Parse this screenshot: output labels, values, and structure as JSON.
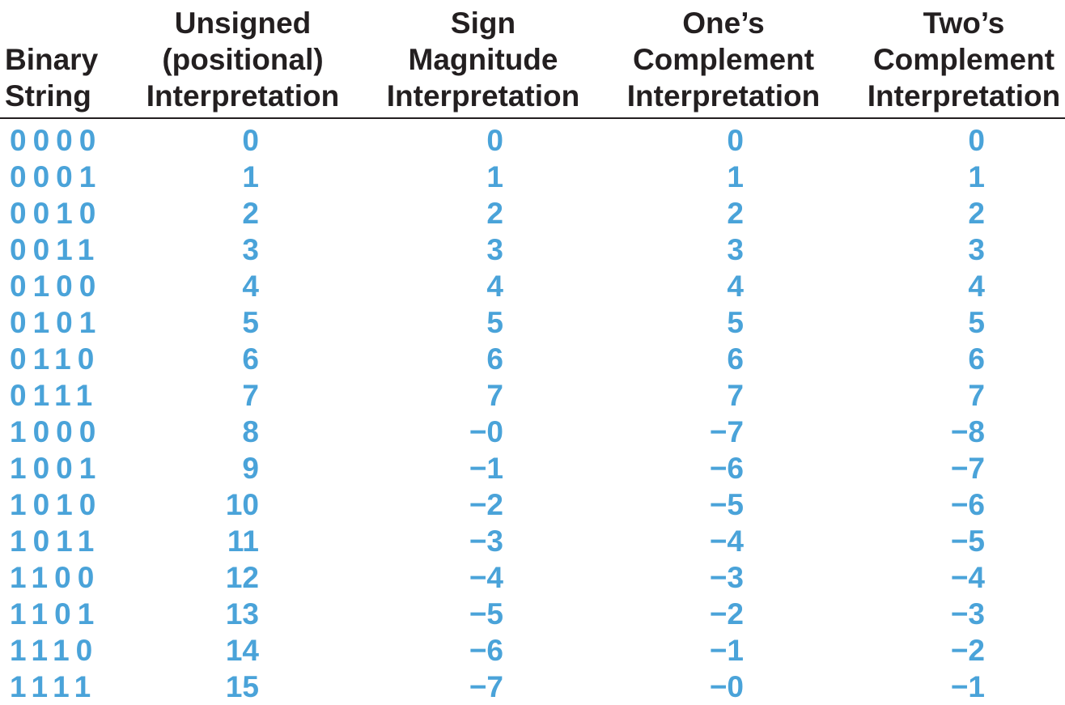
{
  "headers": [
    {
      "lines": [
        "Binary",
        "String"
      ]
    },
    {
      "lines": [
        "Unsigned",
        "(positional)",
        "Interpretation"
      ]
    },
    {
      "lines": [
        "Sign",
        "Magnitude",
        "Interpretation"
      ]
    },
    {
      "lines": [
        "One’s",
        "Complement",
        "Interpretation"
      ]
    },
    {
      "lines": [
        "Two’s",
        "Complement",
        "Interpretation"
      ]
    }
  ],
  "colors": {
    "header_text": "#231f20",
    "value_text": "#4aa3d9",
    "rule": "#231f20"
  },
  "rows": [
    {
      "binary": "0000",
      "unsigned": "0",
      "sign_magnitude": "0",
      "ones_complement": "0",
      "twos_complement": "0"
    },
    {
      "binary": "0001",
      "unsigned": "1",
      "sign_magnitude": "1",
      "ones_complement": "1",
      "twos_complement": "1"
    },
    {
      "binary": "0010",
      "unsigned": "2",
      "sign_magnitude": "2",
      "ones_complement": "2",
      "twos_complement": "2"
    },
    {
      "binary": "0011",
      "unsigned": "3",
      "sign_magnitude": "3",
      "ones_complement": "3",
      "twos_complement": "3"
    },
    {
      "binary": "0100",
      "unsigned": "4",
      "sign_magnitude": "4",
      "ones_complement": "4",
      "twos_complement": "4"
    },
    {
      "binary": "0101",
      "unsigned": "5",
      "sign_magnitude": "5",
      "ones_complement": "5",
      "twos_complement": "5"
    },
    {
      "binary": "0110",
      "unsigned": "6",
      "sign_magnitude": "6",
      "ones_complement": "6",
      "twos_complement": "6"
    },
    {
      "binary": "0111",
      "unsigned": "7",
      "sign_magnitude": "7",
      "ones_complement": "7",
      "twos_complement": "7"
    },
    {
      "binary": "1000",
      "unsigned": "8",
      "sign_magnitude": "−0",
      "ones_complement": "−7",
      "twos_complement": "−8"
    },
    {
      "binary": "1001",
      "unsigned": "9",
      "sign_magnitude": "−1",
      "ones_complement": "−6",
      "twos_complement": "−7"
    },
    {
      "binary": "1010",
      "unsigned": "10",
      "sign_magnitude": "−2",
      "ones_complement": "−5",
      "twos_complement": "−6"
    },
    {
      "binary": "1011",
      "unsigned": "11",
      "sign_magnitude": "−3",
      "ones_complement": "−4",
      "twos_complement": "−5"
    },
    {
      "binary": "1100",
      "unsigned": "12",
      "sign_magnitude": "−4",
      "ones_complement": "−3",
      "twos_complement": "−4"
    },
    {
      "binary": "1101",
      "unsigned": "13",
      "sign_magnitude": "−5",
      "ones_complement": "−2",
      "twos_complement": "−3"
    },
    {
      "binary": "1110",
      "unsigned": "14",
      "sign_magnitude": "−6",
      "ones_complement": "−1",
      "twos_complement": "−2"
    },
    {
      "binary": "1111",
      "unsigned": "15",
      "sign_magnitude": "−7",
      "ones_complement": "−0",
      "twos_complement": "−1"
    }
  ]
}
